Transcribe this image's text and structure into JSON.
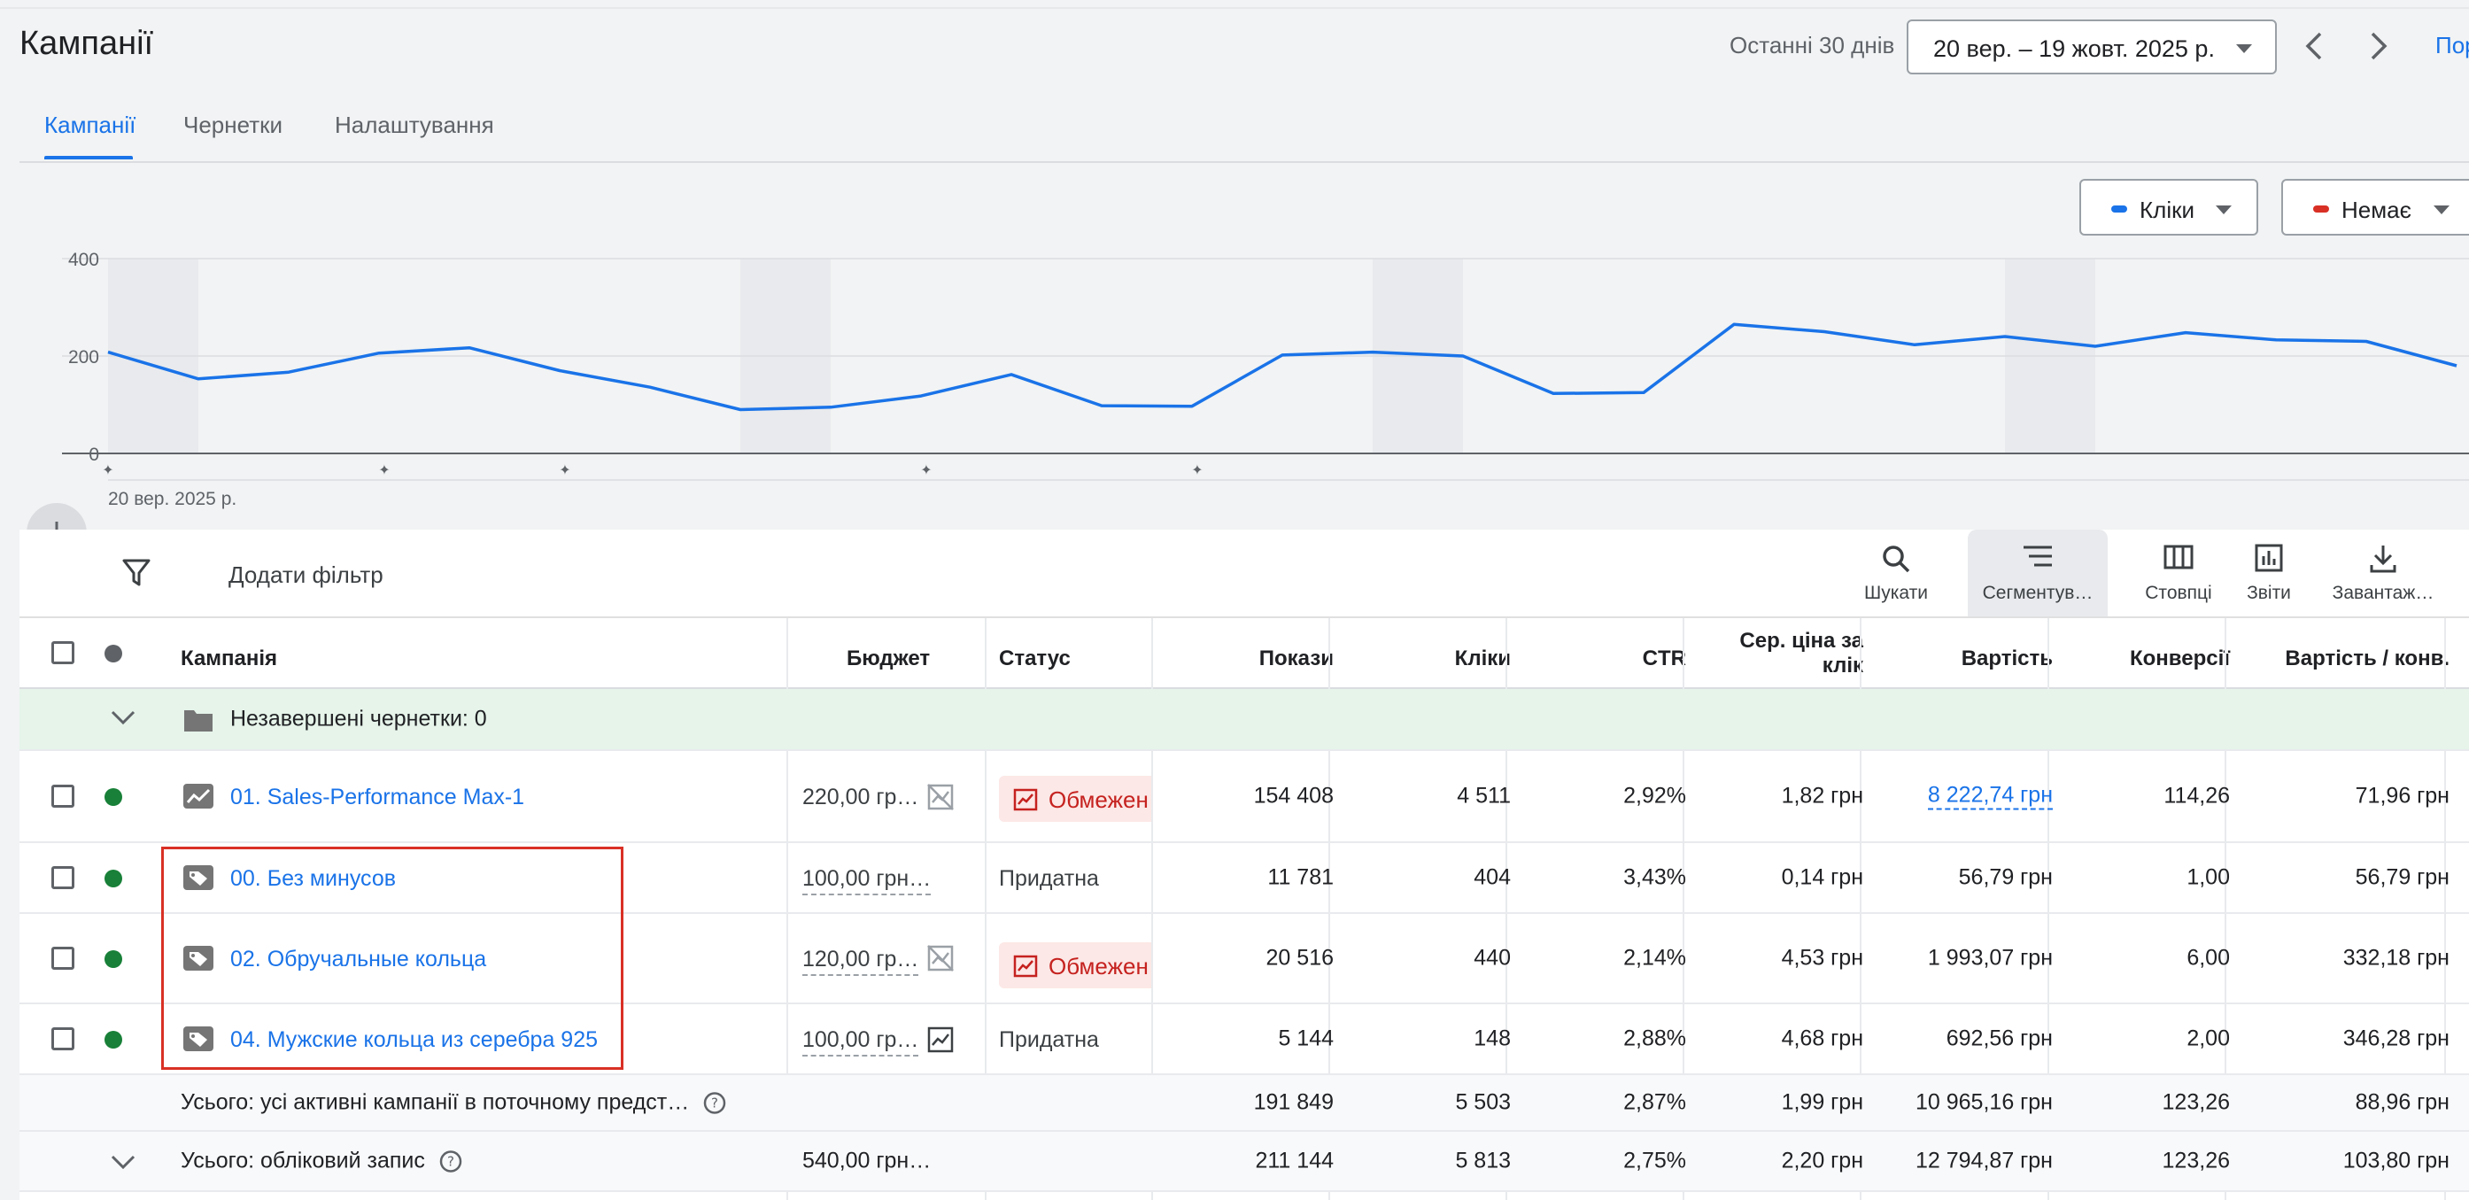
{
  "page_title": "Кампанії",
  "date_range": {
    "label": "Останні 30 днів",
    "value": "20 вер. – 19 жовт. 2025 р.",
    "cut_link": "Пор"
  },
  "tabs": [
    {
      "label": "Кампанії",
      "active": true
    },
    {
      "label": "Чернетки",
      "active": false
    },
    {
      "label": "Налаштування",
      "active": false
    }
  ],
  "metrics": [
    {
      "label": "Кліки",
      "color": "#1a73e8"
    },
    {
      "label": "Немає",
      "color": "#d93025"
    }
  ],
  "chart_data": {
    "type": "line",
    "series": [
      {
        "name": "Кліки",
        "color": "#1a73e8",
        "values": [
          208,
          153,
          167,
          206,
          217,
          170,
          136,
          90,
          95,
          118,
          162,
          98,
          97,
          202,
          208,
          200,
          123,
          125,
          265,
          250,
          223,
          240,
          220,
          248,
          233,
          230,
          180
        ]
      }
    ],
    "y_ticks": [
      "400",
      "200",
      "0"
    ],
    "ylim": [
      0,
      400
    ],
    "x_start_label": "20 вер. 2025 р.",
    "weekend_bands": true
  },
  "toolbar": {
    "filter_label": "Додати фільтр",
    "search_label": "Шукати",
    "segment_label": "Сегментув…",
    "columns_label": "Стовпці",
    "reports_label": "Звіти",
    "download_label": "Завантаж…"
  },
  "table": {
    "headers": {
      "campaign": "Кампанія",
      "budget": "Бюджет",
      "status": "Статус",
      "impressions": "Покази",
      "clicks": "Кліки",
      "ctr": "CTR",
      "avg_cpc": "Сер. ціна за клік",
      "cost": "Вартість",
      "conversions": "Конверсії",
      "cost_per_conv": "Вартість / конв."
    },
    "draft_row": {
      "label": "Незавершені чернетки: 0"
    },
    "rows": [
      {
        "name": "01. Sales-Performance Max-1",
        "budget": "220,00 гр…",
        "status": "Обмежен",
        "status_limited": true,
        "impressions": "154 408",
        "clicks": "4 511",
        "ctr": "2,92%",
        "avg_cpc": "1,82 грн",
        "cost": "8 222,74 грн",
        "conversions": "114,26",
        "cost_per_conv": "71,96 грн",
        "icon": "performance-max-icon"
      },
      {
        "name": "00. Без минусов",
        "budget": "100,00 грн…",
        "status": "Придатна",
        "status_limited": false,
        "impressions": "11 781",
        "clicks": "404",
        "ctr": "3,43%",
        "avg_cpc": "0,14 грн",
        "cost": "56,79 грн",
        "conversions": "1,00",
        "cost_per_conv": "56,79 грн",
        "icon": "shopping-tag-icon"
      },
      {
        "name": "02. Обручальные кольца",
        "budget": "120,00 гр…",
        "status": "Обмежен",
        "status_limited": true,
        "impressions": "20 516",
        "clicks": "440",
        "ctr": "2,14%",
        "avg_cpc": "4,53 грн",
        "cost": "1 993,07 грн",
        "conversions": "6,00",
        "cost_per_conv": "332,18 грн",
        "icon": "shopping-tag-icon"
      },
      {
        "name": "04. Мужские кольца из серебра 925",
        "budget": "100,00 гр…",
        "status": "Придатна",
        "status_limited": false,
        "impressions": "5 144",
        "clicks": "148",
        "ctr": "2,88%",
        "avg_cpc": "4,68 грн",
        "cost": "692,56 грн",
        "conversions": "2,00",
        "cost_per_conv": "346,28 грн",
        "icon": "shopping-tag-icon"
      }
    ],
    "totals": [
      {
        "label": "Усього: усі активні кампанії в поточному предст…",
        "budget": "",
        "impressions": "191 849",
        "clicks": "5 503",
        "ctr": "2,87%",
        "avg_cpc": "1,99 грн",
        "cost": "10 965,16 грн",
        "conversions": "123,26",
        "cost_per_conv": "88,96 грн"
      },
      {
        "label": "Усього: обліковий запис",
        "budget": "540,00 грн…",
        "impressions": "211 144",
        "clicks": "5 813",
        "ctr": "2,75%",
        "avg_cpc": "2,20 грн",
        "cost": "12 794,87 грн",
        "conversions": "123,26",
        "cost_per_conv": "103,80 грн"
      }
    ]
  }
}
